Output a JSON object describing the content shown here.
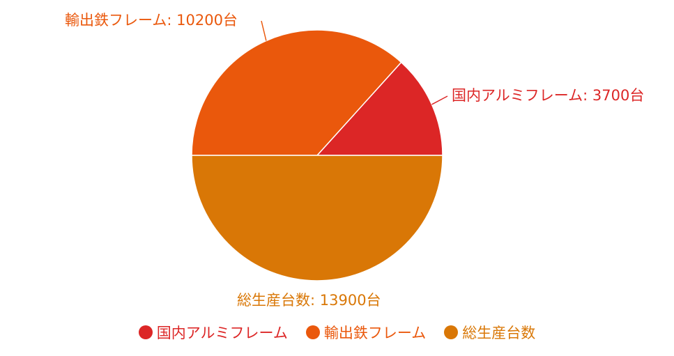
{
  "chart_data": {
    "type": "pie",
    "slices": [
      {
        "name": "国内アルミフレーム",
        "value": 3700,
        "label": "国内アルミフレーム: 3700台",
        "color": "#dc2626"
      },
      {
        "name": "輸出鉄フレーム",
        "value": 10200,
        "label": "輸出鉄フレーム: 10200台",
        "color": "#ea580c"
      },
      {
        "name": "総生産台数",
        "value": 13900,
        "label": "総生産台数: 13900台",
        "color": "#d97706"
      }
    ],
    "legend": {
      "position": "bottom",
      "items": [
        {
          "label": "国内アルミフレーム",
          "color": "#dc2626"
        },
        {
          "label": "輸出鉄フレーム",
          "color": "#ea580c"
        },
        {
          "label": "総生産台数",
          "color": "#d97706"
        }
      ]
    }
  }
}
